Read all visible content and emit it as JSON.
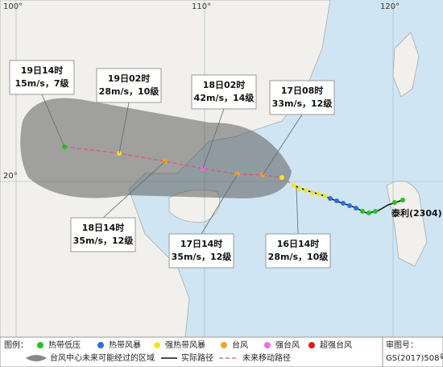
{
  "axis_labels": {
    "lon": [
      "100°",
      "110°",
      "120°"
    ],
    "lat": [
      "20°"
    ]
  },
  "callouts": [
    {
      "time": "19日14时",
      "detail": "15m/s，7级"
    },
    {
      "time": "19日02时",
      "detail": "28m/s，10级"
    },
    {
      "time": "18日02时",
      "detail": "42m/s，14级"
    },
    {
      "time": "17日08时",
      "detail": "33m/s，12级"
    },
    {
      "time": "18日14时",
      "detail": "35m/s，12级"
    },
    {
      "time": "17日14时",
      "detail": "35m/s，12级"
    },
    {
      "time": "16日14时",
      "detail": "28m/s，10级"
    }
  ],
  "typhoon_name": "泰利(2304)",
  "legend": {
    "title": "图例：",
    "intensity": [
      {
        "label": "热带低压",
        "color": "#22c41f"
      },
      {
        "label": "热带风暴",
        "color": "#2f6fd8"
      },
      {
        "label": "强热带风暴",
        "color": "#f2e62c"
      },
      {
        "label": "台风",
        "color": "#f0a32a"
      },
      {
        "label": "强台风",
        "color": "#e86fe0"
      },
      {
        "label": "超强台风",
        "color": "#e31a1a"
      }
    ],
    "cone": "台风中心未来可能经过的区域",
    "actual": "实际路径",
    "forecast": "未来移动路径"
  },
  "approval": {
    "label": "审图号：",
    "number": "GS(2017)508号"
  }
}
